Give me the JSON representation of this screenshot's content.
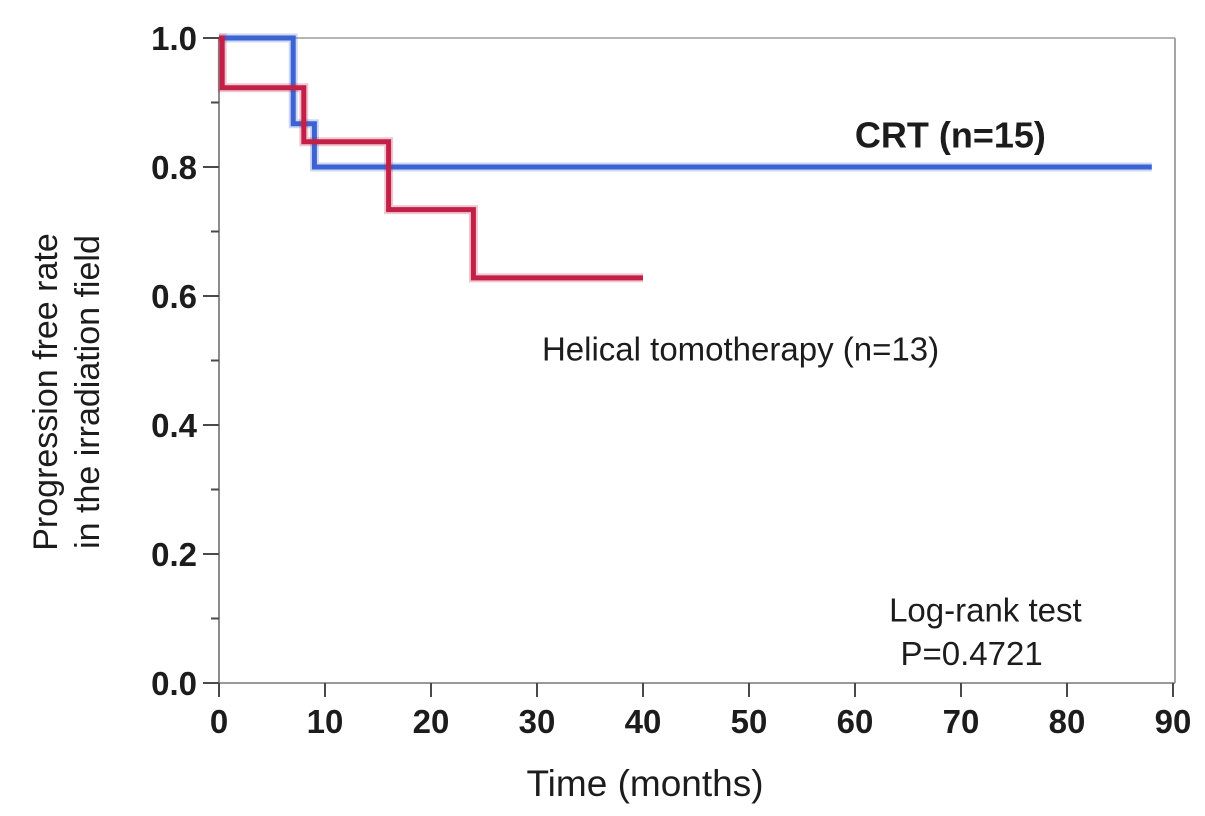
{
  "chart_data": {
    "type": "line",
    "chart_kind": "kaplan_meier_step",
    "title": "",
    "xlabel": "Time (months)",
    "ylabel_lines": [
      "Progression free rate",
      "in the irradiation field"
    ],
    "xlim": [
      0,
      90
    ],
    "ylim": [
      0,
      1
    ],
    "x_tick_values": [
      0,
      10,
      20,
      30,
      40,
      50,
      60,
      70,
      80,
      90
    ],
    "x_tick_labels": [
      "0",
      "10",
      "20",
      "30",
      "40",
      "50",
      "60",
      "70",
      "80",
      "90"
    ],
    "y_tick_values": [
      0,
      0.2,
      0.4,
      0.6,
      0.8,
      1
    ],
    "y_tick_labels": [
      "0.0",
      "0.2",
      "0.4",
      "0.6",
      "0.8",
      "1.0"
    ],
    "y_minor_tick_values": [
      0.1,
      0.3,
      0.5,
      0.7,
      0.9
    ],
    "grid": false,
    "legend_position": "inline-annotations",
    "series": [
      {
        "name": "CRT (n=15)",
        "slug": "crt",
        "color": "#3b63d2",
        "steps": [
          [
            0,
            1.0
          ],
          [
            7,
            1.0
          ],
          [
            7,
            0.867
          ],
          [
            9,
            0.867
          ],
          [
            9,
            0.8
          ],
          [
            88,
            0.8
          ]
        ]
      },
      {
        "name": "Helical tomotherapy (n=13)",
        "slug": "helical-tomotherapy",
        "color": "#c22047",
        "steps": [
          [
            0,
            1.0
          ],
          [
            0.3,
            1.0
          ],
          [
            0.3,
            0.923
          ],
          [
            8,
            0.923
          ],
          [
            8,
            0.839
          ],
          [
            16,
            0.839
          ],
          [
            16,
            0.734
          ],
          [
            24,
            0.734
          ],
          [
            24,
            0.628
          ],
          [
            40,
            0.628
          ]
        ]
      }
    ],
    "annotations": [
      {
        "id": "crt-series-label",
        "text": "CRT (n=15)",
        "x": 69,
        "y": 0.83,
        "bold": true
      },
      {
        "id": "tomotherapy-series-label",
        "text": "Helical tomotherapy (n=13)",
        "x": 49.2,
        "y": 0.5,
        "bold": false
      },
      {
        "id": "logrank-test-label",
        "text": "Log-rank test",
        "x": 72.3,
        "y": 0.095,
        "bold": false
      },
      {
        "id": "p-value-label",
        "text": "P=0.4721",
        "x": 71,
        "y": 0.028,
        "bold": false
      }
    ],
    "colors": {
      "frame_top": "#b5b5b5",
      "frame_right": "#a5a5a5",
      "axis_bottom": "#999999",
      "axis_left": "#8c8c8c",
      "tick": "#4a4a4a",
      "text": "#1c1c1c",
      "background": "#ffffff"
    }
  }
}
